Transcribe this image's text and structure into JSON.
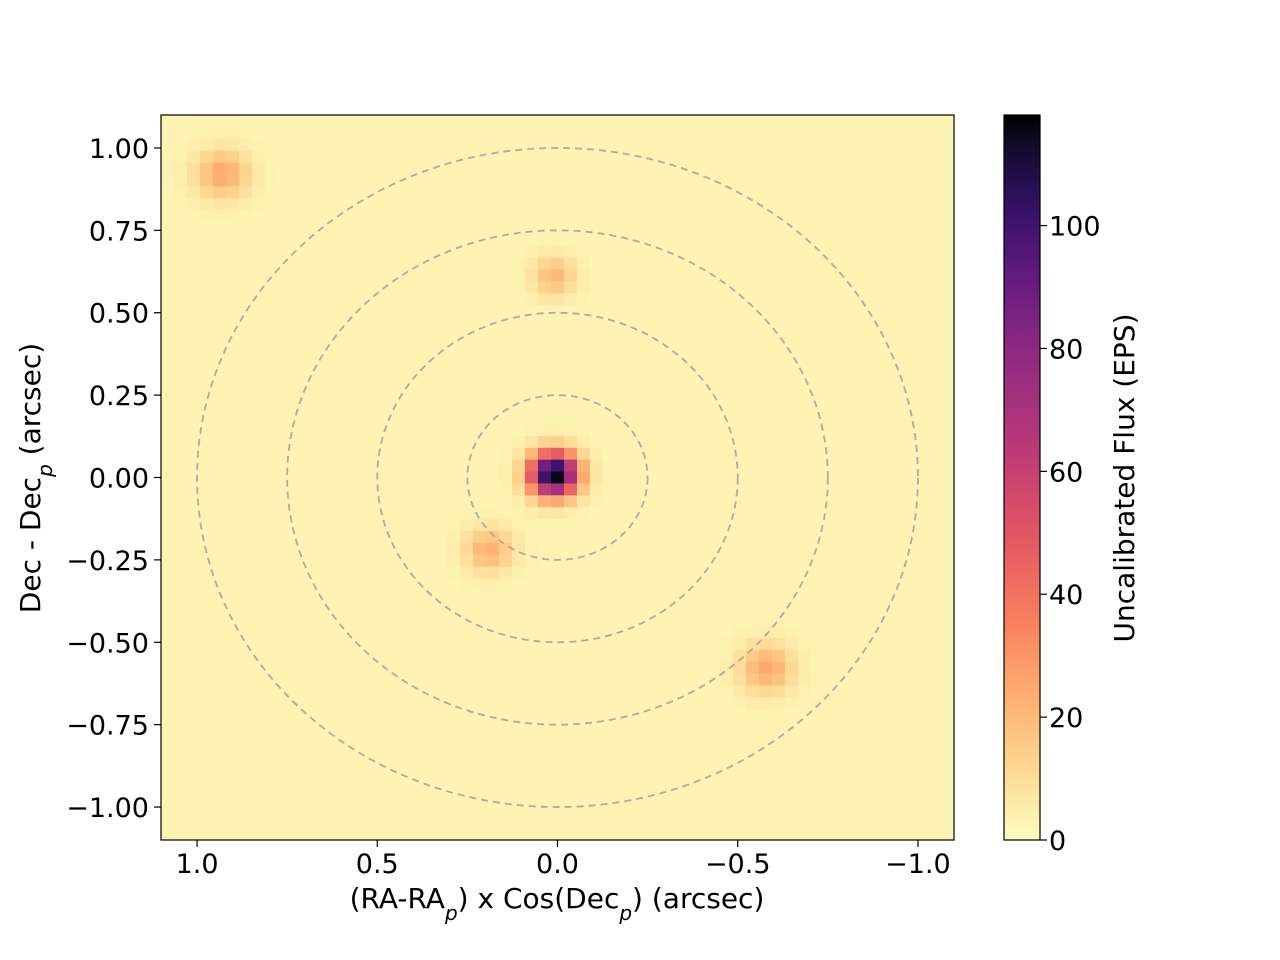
{
  "chart_data": {
    "type": "heatmap",
    "colormap": "magma_r",
    "xlabel": {
      "prefix": "(RA-RA",
      "sub1": "p",
      "middle": ") x Cos(Dec",
      "sub2": "p",
      "suffix": ") (arcsec)"
    },
    "ylabel": {
      "prefix": "Dec - Dec",
      "sub": "p",
      "suffix": " (arcsec)"
    },
    "xlim": [
      1.1,
      -1.1
    ],
    "ylim": [
      -1.1,
      1.1
    ],
    "x_ticks": [
      {
        "value": 1.0,
        "label": "1.0"
      },
      {
        "value": 0.5,
        "label": "0.5"
      },
      {
        "value": 0.0,
        "label": "0.0"
      },
      {
        "value": -0.5,
        "label": "−0.5"
      },
      {
        "value": -1.0,
        "label": "−1.0"
      }
    ],
    "y_ticks": [
      {
        "value": 1.0,
        "label": "1.00"
      },
      {
        "value": 0.75,
        "label": "0.75"
      },
      {
        "value": 0.5,
        "label": "0.50"
      },
      {
        "value": 0.25,
        "label": "0.25"
      },
      {
        "value": 0.0,
        "label": "0.00"
      },
      {
        "value": -0.25,
        "label": "−0.25"
      },
      {
        "value": -0.5,
        "label": "−0.50"
      },
      {
        "value": -0.75,
        "label": "−0.75"
      },
      {
        "value": -1.0,
        "label": "−1.00"
      }
    ],
    "grid": false,
    "background_flux": 3,
    "sources": [
      {
        "x": 0.01,
        "y": 0.01,
        "peak_flux": 118,
        "sigma": 0.045
      },
      {
        "x": 0.93,
        "y": 0.92,
        "peak_flux": 22,
        "sigma": 0.05
      },
      {
        "x": 0.01,
        "y": 0.61,
        "peak_flux": 18,
        "sigma": 0.04
      },
      {
        "x": 0.19,
        "y": -0.22,
        "peak_flux": 20,
        "sigma": 0.045
      },
      {
        "x": -0.58,
        "y": -0.58,
        "peak_flux": 22,
        "sigma": 0.05
      }
    ],
    "overlay_circles": {
      "center": [
        0.0,
        0.0
      ],
      "radii": [
        0.25,
        0.5,
        0.75,
        1.0
      ],
      "style": "dashed",
      "color": "#b0aaa0"
    },
    "colorbar": {
      "label": "Uncalibrated Flux (EPS)",
      "range": [
        0,
        118
      ],
      "ticks": [
        {
          "value": 0,
          "label": "0"
        },
        {
          "value": 20,
          "label": "20"
        },
        {
          "value": 40,
          "label": "40"
        },
        {
          "value": 60,
          "label": "60"
        },
        {
          "value": 80,
          "label": "80"
        },
        {
          "value": 100,
          "label": "100"
        }
      ]
    }
  }
}
